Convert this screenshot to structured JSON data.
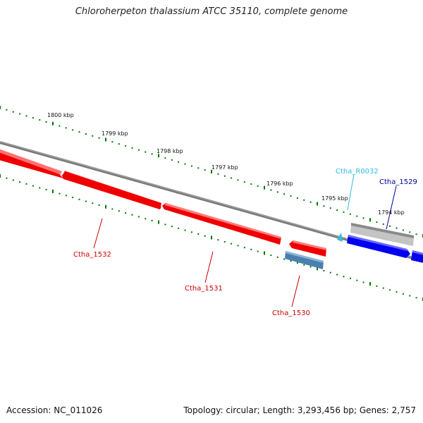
{
  "title": "Chloroherpeton thalassium ATCC 35110, complete genome",
  "footer": {
    "accession": "Accession: NC_011026",
    "stats": "Topology: circular; Length: 3,293,456 bp; Genes: 2,757"
  },
  "colors": {
    "tick_green": "#007700",
    "backbone": "#808080",
    "gene_red": "#ee0000",
    "gene_blue": "#0000ee",
    "gene_steelblue": "#4a7fb0",
    "gene_gray": "#bdbdbd",
    "label_red": "#cc0000",
    "label_cyan": "#33bbdd",
    "label_navy": "#000099"
  },
  "scale_labels": [
    "1800 kbp",
    "1799 kbp",
    "1798 kbp",
    "1797 kbp",
    "1796 kbp",
    "1795 kbp",
    "1794 kbp"
  ],
  "gene_labels": {
    "ctha_1532": "Ctha_1532",
    "ctha_1531": "Ctha_1531",
    "ctha_1530": "Ctha_1530",
    "ctha_r0032": "Ctha_R0032",
    "ctha_1529": "Ctha_1529"
  }
}
